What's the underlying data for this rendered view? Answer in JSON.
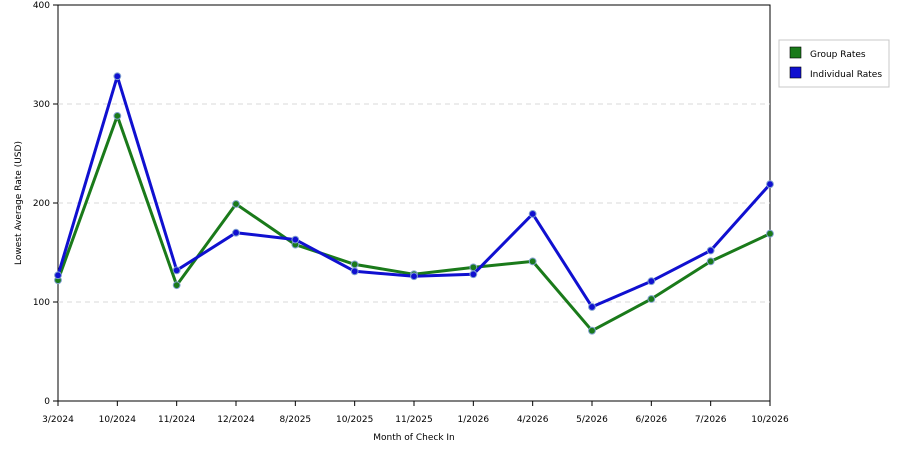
{
  "chart_data": {
    "type": "line",
    "categories": [
      "3/2024",
      "10/2024",
      "11/2024",
      "12/2024",
      "8/2025",
      "10/2025",
      "11/2025",
      "1/2026",
      "4/2026",
      "5/2026",
      "6/2026",
      "7/2026",
      "10/2026"
    ],
    "series": [
      {
        "name": "Group Rates",
        "color": "#1a7a1a",
        "values": [
          122,
          288,
          117,
          199,
          158,
          138,
          128,
          135,
          141,
          71,
          103,
          141,
          169
        ]
      },
      {
        "name": "Individual Rates",
        "color": "#1010d0",
        "values": [
          127,
          328,
          132,
          170,
          163,
          131,
          126,
          128,
          189,
          95,
          121,
          152,
          219
        ]
      }
    ],
    "y_ticks": [
      "0",
      "100",
      "200",
      "300",
      "400"
    ],
    "ylim": [
      0,
      400
    ],
    "xlabel": "Month of Check In",
    "ylabel": "Lowest Average Rate (USD)",
    "grid": "horizontal dashed",
    "legend": "right"
  }
}
